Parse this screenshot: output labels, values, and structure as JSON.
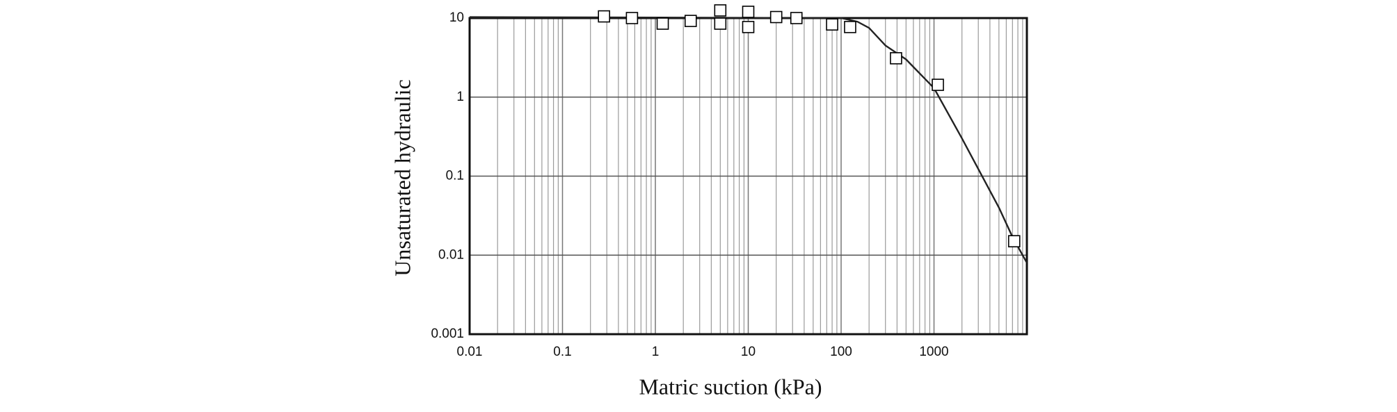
{
  "chart_data": {
    "type": "line",
    "x_label": "Matric suction (kPa)",
    "y_label": "Unsaturated hydraulic",
    "xscale": "log",
    "yscale": "log",
    "grid": true,
    "minor_grid": true,
    "xlim": [
      0.01,
      10000
    ],
    "xticks": [
      0.01,
      0.1,
      1,
      10,
      100,
      1000
    ],
    "ylim": [
      0.001,
      10
    ],
    "yticks": [
      0.001,
      0.01,
      0.1,
      1,
      10
    ],
    "series": [
      {
        "color": "#000000",
        "marker": "square",
        "x": [
          0.28,
          0.56,
          1.2,
          2.4,
          5,
          5,
          10,
          10,
          20,
          33,
          80,
          125,
          390,
          1100,
          7300
        ],
        "values": [
          10.5,
          10,
          8.5,
          9.2,
          12.5,
          8.5,
          12,
          7.7,
          10.3,
          10,
          8.3,
          7.7,
          3.1,
          1.43,
          0.015
        ]
      },
      {
        "color": "#222222",
        "x": [
          0.01,
          100,
          150,
          200,
          300,
          500,
          1000,
          2000,
          5000,
          7000,
          10000
        ],
        "values": [
          10.3,
          10,
          9,
          7.5,
          4.5,
          3,
          1.3,
          0.3,
          0.04,
          0.017,
          0.008
        ]
      }
    ]
  }
}
